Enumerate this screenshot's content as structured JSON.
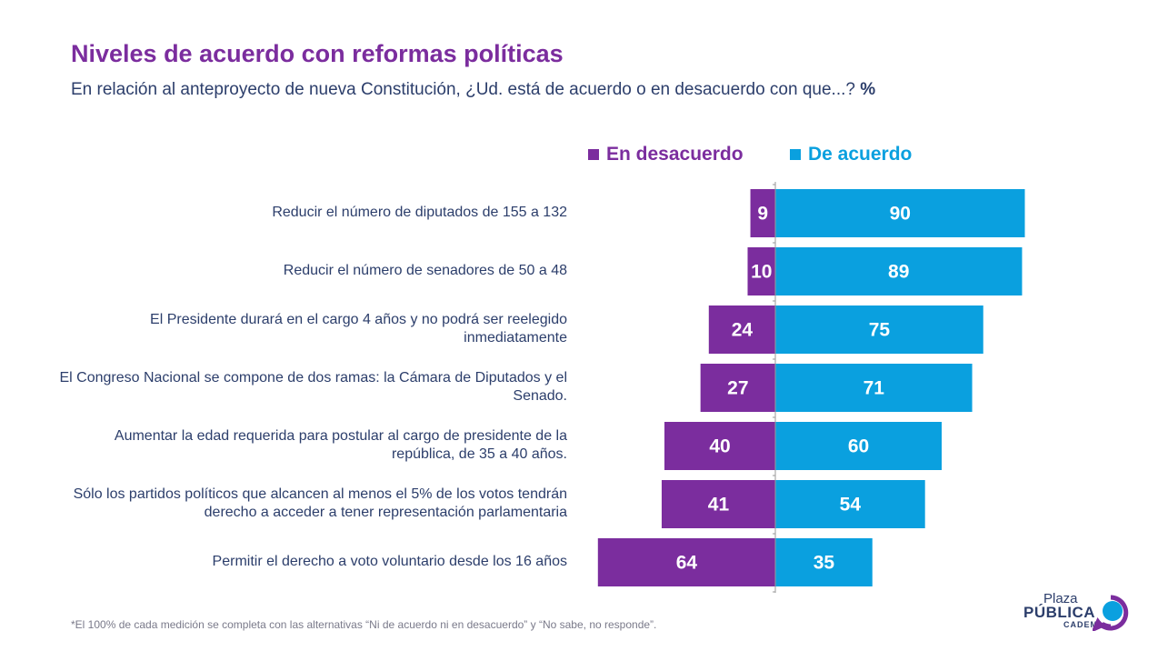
{
  "header": {
    "title": "Niveles de acuerdo con reformas políticas",
    "subtitle": "En relación al anteproyecto de nueva Constitución, ¿Ud. está de acuerdo o en desacuerdo con que...?",
    "unit": "%"
  },
  "legend": {
    "disagree": "En desacuerdo",
    "agree": "De acuerdo"
  },
  "colors": {
    "disagree": "#7b2d9e",
    "agree": "#0aa0df",
    "title": "#7b2d9e",
    "text": "#2c3e6b"
  },
  "chart_data": {
    "type": "bar",
    "orientation": "horizontal-diverging",
    "categories": [
      "Reducir el número de diputados de 155 a 132",
      "Reducir el número de senadores de 50 a 48",
      "El Presidente durará en el cargo 4 años y no podrá ser reelegido inmediatamente",
      "El Congreso Nacional se compone de dos ramas: la Cámara de Diputados y el Senado.",
      "Aumentar la edad requerida para postular al cargo de presidente de la república, de 35 a 40 años.",
      "Sólo los partidos políticos que alcancen al menos el 5% de los votos tendrán derecho a acceder a tener representación parlamentaria",
      "Permitir el derecho a voto voluntario desde los 16 años"
    ],
    "series": [
      {
        "name": "En desacuerdo",
        "values": [
          9,
          10,
          24,
          27,
          40,
          41,
          64
        ]
      },
      {
        "name": "De acuerdo",
        "values": [
          90,
          89,
          75,
          71,
          60,
          54,
          35
        ]
      }
    ],
    "legend_position": "top",
    "grid": false
  },
  "footnote": "*El 100% de cada medición se completa con las alternativas “Ni de acuerdo ni en desacuerdo” y  “No sabe, no responde”.",
  "logo": {
    "line1": "Plaza",
    "line2": "PÚBLICA",
    "line3": "CADEM"
  }
}
